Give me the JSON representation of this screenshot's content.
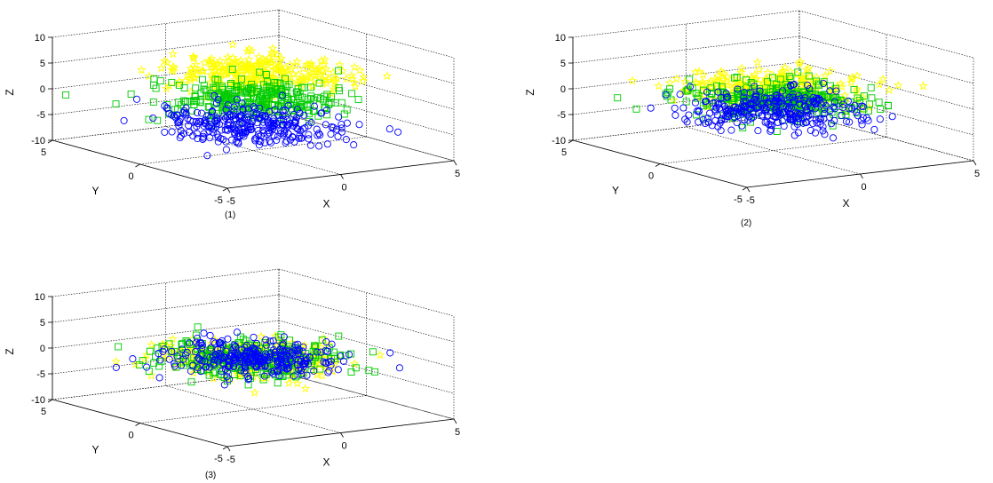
{
  "chart_data": [
    {
      "type": "scatter",
      "caption": "(1)",
      "xlabel": "X",
      "ylabel": "Y",
      "zlabel": "Z",
      "xlim": [
        -5,
        5
      ],
      "ylim": [
        -5,
        5
      ],
      "zlim": [
        -10,
        10
      ],
      "xticks": [
        "-5",
        "0",
        "5"
      ],
      "yticks": [
        "-5",
        "0",
        "5"
      ],
      "zticks": [
        "-10",
        "-5",
        "0",
        "5",
        "10"
      ],
      "grid": true,
      "series": [
        {
          "marker": "star",
          "color": "#ffff00",
          "count": 300,
          "center": [
            0,
            0,
            5
          ],
          "spread": [
            1.6,
            1.6,
            1.1
          ]
        },
        {
          "marker": "square",
          "color": "#00cc00",
          "count": 300,
          "center": [
            0,
            0,
            0
          ],
          "spread": [
            1.6,
            1.6,
            1.1
          ]
        },
        {
          "marker": "circle",
          "color": "#0000ff",
          "count": 300,
          "center": [
            0,
            0,
            -5
          ],
          "spread": [
            1.6,
            1.6,
            1.1
          ]
        }
      ]
    },
    {
      "type": "scatter",
      "caption": "(2)",
      "xlabel": "X",
      "ylabel": "Y",
      "zlabel": "Z",
      "xlim": [
        -5,
        5
      ],
      "ylim": [
        -5,
        5
      ],
      "zlim": [
        -10,
        10
      ],
      "xticks": [
        "-5",
        "0",
        "5"
      ],
      "yticks": [
        "-5",
        "0",
        "5"
      ],
      "zticks": [
        "-10",
        "-5",
        "0",
        "5",
        "10"
      ],
      "grid": true,
      "series": [
        {
          "marker": "star",
          "color": "#ffff00",
          "count": 300,
          "center": [
            0,
            0,
            2
          ],
          "spread": [
            1.6,
            1.6,
            1.0
          ]
        },
        {
          "marker": "square",
          "color": "#00cc00",
          "count": 300,
          "center": [
            0,
            0,
            0
          ],
          "spread": [
            1.6,
            1.6,
            1.0
          ]
        },
        {
          "marker": "circle",
          "color": "#0000ff",
          "count": 300,
          "center": [
            0,
            0,
            -2
          ],
          "spread": [
            1.6,
            1.6,
            1.0
          ]
        }
      ]
    },
    {
      "type": "scatter",
      "caption": "(3)",
      "xlabel": "X",
      "ylabel": "Y",
      "zlabel": "Z",
      "xlim": [
        -5,
        5
      ],
      "ylim": [
        -5,
        5
      ],
      "zlim": [
        -10,
        10
      ],
      "xticks": [
        "-5",
        "0",
        "5"
      ],
      "yticks": [
        "-5",
        "0",
        "5"
      ],
      "zticks": [
        "-10",
        "-5",
        "0",
        "5",
        "10"
      ],
      "grid": true,
      "series": [
        {
          "marker": "star",
          "color": "#ffff00",
          "count": 300,
          "center": [
            0,
            0,
            0
          ],
          "spread": [
            1.6,
            1.6,
            0.8
          ]
        },
        {
          "marker": "square",
          "color": "#00cc00",
          "count": 300,
          "center": [
            0,
            0,
            0
          ],
          "spread": [
            1.6,
            1.6,
            0.8
          ]
        },
        {
          "marker": "circle",
          "color": "#0000ff",
          "count": 300,
          "center": [
            0,
            0,
            0
          ],
          "spread": [
            1.6,
            1.6,
            0.8
          ]
        }
      ]
    }
  ]
}
